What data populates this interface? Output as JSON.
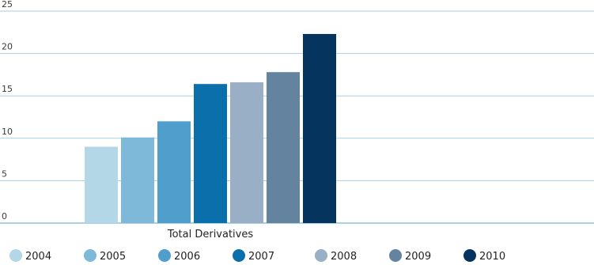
{
  "chart_data": {
    "type": "bar",
    "title": "",
    "xlabel": "",
    "ylabel": "",
    "categories": [
      "Total Derivatives"
    ],
    "series": [
      {
        "name": "2004",
        "values": [
          9.0
        ],
        "color": "#b3d7e7"
      },
      {
        "name": "2005",
        "values": [
          10.1
        ],
        "color": "#7fb9da"
      },
      {
        "name": "2006",
        "values": [
          12.0
        ],
        "color": "#4f9ecb"
      },
      {
        "name": "2007",
        "values": [
          16.4
        ],
        "color": "#0a6fab"
      },
      {
        "name": "2008",
        "values": [
          16.6
        ],
        "color": "#98afc5"
      },
      {
        "name": "2009",
        "values": [
          17.8
        ],
        "color": "#64839f"
      },
      {
        "name": "2010",
        "values": [
          22.3
        ],
        "color": "#05345f"
      }
    ],
    "ylim": [
      0,
      25
    ],
    "yticks": [
      0,
      5,
      10,
      15,
      20,
      25
    ],
    "grid": true,
    "legend_position": "bottom"
  }
}
